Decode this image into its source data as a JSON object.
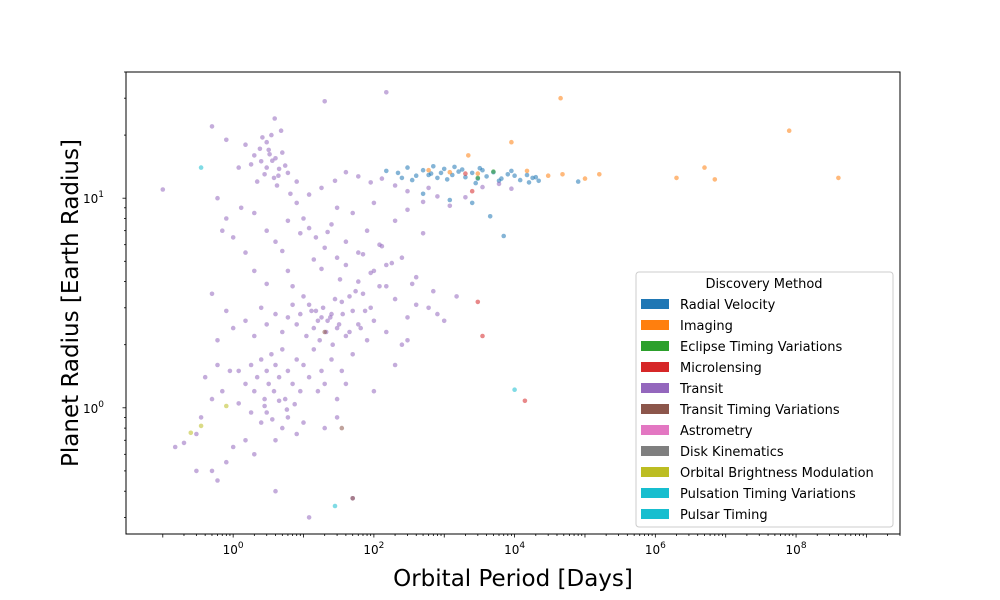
{
  "chart_data": {
    "type": "scatter",
    "title": "",
    "xlabel": "Orbital Period [Days]",
    "ylabel": "Planet Radius [Earth Radius]",
    "x_scale": "log",
    "y_scale": "log",
    "xlim": [
      0.03,
      3000000000
    ],
    "ylim": [
      0.25,
      40
    ],
    "grid": false,
    "legend": {
      "title": "Discovery Method",
      "placement": "lower-right"
    },
    "x_ticks": [
      {
        "value": 1,
        "base": "10",
        "exp": "0"
      },
      {
        "value": 100,
        "base": "10",
        "exp": "2"
      },
      {
        "value": 10000,
        "base": "10",
        "exp": "4"
      },
      {
        "value": 1000000,
        "base": "10",
        "exp": "6"
      },
      {
        "value": 100000000,
        "base": "10",
        "exp": "8"
      }
    ],
    "y_ticks": [
      {
        "value": 1,
        "base": "10",
        "exp": "0"
      },
      {
        "value": 10,
        "base": "10",
        "exp": "1"
      }
    ],
    "series": [
      {
        "name": "Radial Velocity",
        "color": "#1f77b4",
        "points": [
          [
            150,
            13.5
          ],
          [
            220,
            13.2
          ],
          [
            300,
            14
          ],
          [
            400,
            12.8
          ],
          [
            500,
            13.6
          ],
          [
            650,
            13.1
          ],
          [
            800,
            12.5
          ],
          [
            1000,
            13.8
          ],
          [
            1300,
            12.9
          ],
          [
            1600,
            13.4
          ],
          [
            2000,
            12.6
          ],
          [
            2500,
            13.2
          ],
          [
            3200,
            13.9
          ],
          [
            4000,
            12.7
          ],
          [
            5000,
            13.3
          ],
          [
            6500,
            12.4
          ],
          [
            8000,
            13
          ],
          [
            10000,
            12.8
          ],
          [
            12000,
            12.2
          ],
          [
            15000,
            12.9
          ],
          [
            18000,
            12.5
          ],
          [
            22000,
            12.1
          ],
          [
            350,
            12.2
          ],
          [
            700,
            14.2
          ],
          [
            1100,
            12.3
          ],
          [
            2800,
            11.8
          ],
          [
            3500,
            13.6
          ],
          [
            6000,
            12.1
          ],
          [
            9000,
            13.5
          ],
          [
            4500,
            8.2
          ],
          [
            2500,
            9.5
          ],
          [
            7000,
            6.6
          ],
          [
            1200,
            9.8
          ],
          [
            500,
            10.5
          ],
          [
            80000,
            12
          ],
          [
            900,
            13.2
          ],
          [
            1800,
            13.7
          ],
          [
            250,
            12.5
          ],
          [
            600,
            12.9
          ],
          [
            1400,
            14.1
          ],
          [
            3000,
            12.4
          ],
          [
            20000,
            12.6
          ],
          [
            16000,
            11.9
          ]
        ]
      },
      {
        "name": "Imaging",
        "color": "#ff7f0e",
        "points": [
          [
            45000,
            30
          ],
          [
            80000000,
            21
          ],
          [
            9000,
            18.5
          ],
          [
            2200,
            16
          ],
          [
            5000000,
            14
          ],
          [
            15000,
            13.5
          ],
          [
            48000,
            13
          ],
          [
            160000,
            13
          ],
          [
            2000000,
            12.5
          ],
          [
            7000000,
            12.3
          ],
          [
            400000000,
            12.5
          ],
          [
            100000,
            12.4
          ],
          [
            3000,
            13.1
          ],
          [
            30000,
            12.8
          ],
          [
            1200,
            13.3
          ],
          [
            600,
            13.6
          ]
        ]
      },
      {
        "name": "Eclipse Timing Variations",
        "color": "#2ca02c",
        "points": [
          [
            3000,
            12.5
          ],
          [
            5000,
            13.4
          ]
        ]
      },
      {
        "name": "Microlensing",
        "color": "#d62728",
        "points": [
          [
            2500,
            10.8
          ],
          [
            3000,
            3.2
          ],
          [
            3500,
            2.2
          ],
          [
            14000,
            1.08
          ],
          [
            2000,
            13.1
          ]
        ]
      },
      {
        "name": "Transit",
        "color": "#9467bd",
        "points": [
          [
            0.1,
            11
          ],
          [
            0.5,
            22
          ],
          [
            0.8,
            19
          ],
          [
            1.5,
            18
          ],
          [
            2,
            16
          ],
          [
            2.5,
            15
          ],
          [
            3,
            14
          ],
          [
            3.2,
            17
          ],
          [
            3.8,
            12.5
          ],
          [
            4,
            15.5
          ],
          [
            4.5,
            13.8
          ],
          [
            5,
            16.5
          ],
          [
            2.8,
            13
          ],
          [
            3.5,
            20
          ],
          [
            4.2,
            11.5
          ],
          [
            2.2,
            12
          ],
          [
            1.8,
            14.5
          ],
          [
            6,
            13.2
          ],
          [
            8,
            12
          ],
          [
            3,
            18.5
          ],
          [
            3.3,
            16.2
          ],
          [
            2.6,
            19.5
          ],
          [
            4.8,
            21
          ],
          [
            3.9,
            24
          ],
          [
            20,
            29
          ],
          [
            150,
            32
          ],
          [
            1.2,
            14
          ],
          [
            2.4,
            17.2
          ],
          [
            3.6,
            15.1
          ],
          [
            4.4,
            12.8
          ],
          [
            5.5,
            14.3
          ],
          [
            6.5,
            10.5
          ],
          [
            8,
            9.5
          ],
          [
            10,
            8
          ],
          [
            12,
            7.2
          ],
          [
            15,
            6.5
          ],
          [
            20,
            5.8
          ],
          [
            25,
            7.5
          ],
          [
            30,
            9
          ],
          [
            40,
            6.2
          ],
          [
            50,
            8.5
          ],
          [
            60,
            5.5
          ],
          [
            80,
            7
          ],
          [
            100,
            9.5
          ],
          [
            120,
            6
          ],
          [
            150,
            4.8
          ],
          [
            200,
            7.8
          ],
          [
            250,
            5.2
          ],
          [
            300,
            8.8
          ],
          [
            400,
            4.2
          ],
          [
            500,
            6.8
          ],
          [
            700,
            3.6
          ],
          [
            2,
            8.5
          ],
          [
            3,
            7
          ],
          [
            4,
            6.2
          ],
          [
            5,
            5.6
          ],
          [
            6,
            4.5
          ],
          [
            7,
            3.8
          ],
          [
            10,
            3.4
          ],
          [
            12,
            3.1
          ],
          [
            15,
            2.9
          ],
          [
            18,
            2.7
          ],
          [
            22,
            2.6
          ],
          [
            25,
            2.8
          ],
          [
            30,
            2.4
          ],
          [
            35,
            3.2
          ],
          [
            40,
            2.2
          ],
          [
            50,
            2.9
          ],
          [
            60,
            2.5
          ],
          [
            70,
            3.5
          ],
          [
            80,
            2.1
          ],
          [
            90,
            3
          ],
          [
            100,
            2.6
          ],
          [
            120,
            3.8
          ],
          [
            150,
            2.3
          ],
          [
            200,
            3.3
          ],
          [
            250,
            2
          ],
          [
            300,
            2.7
          ],
          [
            400,
            3.1
          ],
          [
            8,
            2.5
          ],
          [
            9,
            2.8
          ],
          [
            11,
            2.2
          ],
          [
            13,
            2.9
          ],
          [
            14,
            2.4
          ],
          [
            16,
            2.6
          ],
          [
            17,
            2.1
          ],
          [
            19,
            3
          ],
          [
            21,
            2.3
          ],
          [
            24,
            2.7
          ],
          [
            26,
            2
          ],
          [
            28,
            3.3
          ],
          [
            32,
            2.5
          ],
          [
            36,
            2.8
          ],
          [
            45,
            2.3
          ],
          [
            55,
            3.6
          ],
          [
            65,
            2.4
          ],
          [
            75,
            2.9
          ],
          [
            6,
            2.7
          ],
          [
            7,
            3.1
          ],
          [
            5,
            2.3
          ],
          [
            4,
            2.8
          ],
          [
            3,
            2.5
          ],
          [
            2.5,
            3
          ],
          [
            2,
            2.2
          ],
          [
            1.5,
            2.6
          ],
          [
            1,
            2.4
          ],
          [
            0.8,
            2.9
          ],
          [
            0.6,
            2.1
          ],
          [
            0.5,
            3.5
          ],
          [
            1.2,
            1.5
          ],
          [
            1.5,
            1.3
          ],
          [
            1.8,
            1.6
          ],
          [
            2,
            1.2
          ],
          [
            2.2,
            1.4
          ],
          [
            2.5,
            1.7
          ],
          [
            2.8,
            1.1
          ],
          [
            3,
            1.5
          ],
          [
            3.2,
            1.3
          ],
          [
            3.5,
            1.8
          ],
          [
            3.8,
            1.2
          ],
          [
            4,
            1.6
          ],
          [
            4.5,
            1.4
          ],
          [
            5,
            1.9
          ],
          [
            5.5,
            1.1
          ],
          [
            6,
            1.5
          ],
          [
            7,
            1.3
          ],
          [
            8,
            1.7
          ],
          [
            9,
            1.2
          ],
          [
            10,
            1.6
          ],
          [
            12,
            1.4
          ],
          [
            14,
            1.9
          ],
          [
            16,
            1.2
          ],
          [
            18,
            1.5
          ],
          [
            20,
            1.3
          ],
          [
            25,
            1.7
          ],
          [
            30,
            1.1
          ],
          [
            35,
            1.5
          ],
          [
            40,
            1.3
          ],
          [
            50,
            1.8
          ],
          [
            0.9,
            1.5
          ],
          [
            0.7,
            1.2
          ],
          [
            0.6,
            1.6
          ],
          [
            0.5,
            1.1
          ],
          [
            0.4,
            1.4
          ],
          [
            0.35,
            0.9
          ],
          [
            0.3,
            0.75
          ],
          [
            0.5,
            0.5
          ],
          [
            0.6,
            0.45
          ],
          [
            0.8,
            0.55
          ],
          [
            1,
            0.65
          ],
          [
            1.5,
            0.7
          ],
          [
            2,
            0.6
          ],
          [
            2.5,
            0.85
          ],
          [
            3,
            0.95
          ],
          [
            4,
            0.7
          ],
          [
            5,
            0.8
          ],
          [
            6,
            0.9
          ],
          [
            8,
            0.75
          ],
          [
            10,
            0.85
          ],
          [
            1.2,
            1.05
          ],
          [
            1.8,
            0.95
          ],
          [
            2.8,
            1.02
          ],
          [
            3.6,
            0.88
          ],
          [
            4.5,
            1.08
          ],
          [
            5.8,
            0.98
          ],
          [
            7.5,
            1.04
          ],
          [
            4,
            0.4
          ],
          [
            12,
            0.3
          ],
          [
            50,
            0.37
          ],
          [
            0.15,
            0.65
          ],
          [
            0.2,
            0.68
          ],
          [
            0.3,
            0.5
          ],
          [
            20,
            0.8
          ],
          [
            30,
            0.9
          ],
          [
            100,
            1.2
          ],
          [
            200,
            1.6
          ],
          [
            300,
            2.1
          ],
          [
            60,
            4
          ],
          [
            100,
            4.5
          ],
          [
            150,
            3.8
          ],
          [
            40,
            4.8
          ],
          [
            30,
            5.2
          ],
          [
            3,
            3.9
          ],
          [
            2,
            4.5
          ],
          [
            1.5,
            5.5
          ],
          [
            1,
            6.5
          ],
          [
            0.8,
            8
          ],
          [
            0.6,
            10
          ],
          [
            0.7,
            7
          ],
          [
            1.3,
            9
          ],
          [
            6,
            7.8
          ],
          [
            9,
            6.8
          ],
          [
            14,
            5.1
          ],
          [
            18,
            4.6
          ],
          [
            22,
            6.9
          ],
          [
            33,
            4.1
          ],
          [
            45,
            3.4
          ],
          [
            70,
            5.4
          ],
          [
            90,
            4.4
          ],
          [
            130,
            5.9
          ],
          [
            180,
            4.9
          ],
          [
            350,
            3.9
          ],
          [
            600,
            3
          ],
          [
            800,
            2.8
          ],
          [
            1000,
            2.6
          ],
          [
            1500,
            3.4
          ],
          [
            500,
            9.6
          ],
          [
            600,
            11.2
          ],
          [
            300,
            10.8
          ],
          [
            200,
            11.5
          ],
          [
            130,
            12.4
          ],
          [
            90,
            11.9
          ],
          [
            60,
            12.7
          ],
          [
            40,
            13.3
          ],
          [
            28,
            12.1
          ],
          [
            18,
            11.2
          ],
          [
            12,
            10.4
          ],
          [
            800,
            10.2
          ],
          [
            1200,
            9.2
          ],
          [
            2000,
            10.1
          ],
          [
            3500,
            11.3
          ],
          [
            6000,
            11.7
          ],
          [
            9000,
            11.1
          ]
        ]
      },
      {
        "name": "Transit Timing Variations",
        "color": "#8c564b",
        "points": [
          [
            20,
            2.3
          ],
          [
            35,
            0.8
          ],
          [
            50,
            0.37
          ]
        ]
      },
      {
        "name": "Astrometry",
        "color": "#e377c2",
        "points": []
      },
      {
        "name": "Disk Kinematics",
        "color": "#7f7f7f",
        "points": []
      },
      {
        "name": "Orbital Brightness Modulation",
        "color": "#bcbd22",
        "points": [
          [
            0.25,
            0.76
          ],
          [
            0.8,
            1.02
          ],
          [
            0.35,
            0.82
          ]
        ]
      },
      {
        "name": "Pulsation Timing Variations",
        "color": "#17becf",
        "points": [
          [
            10000,
            1.22
          ],
          [
            28,
            0.34
          ],
          [
            0.35,
            14
          ]
        ]
      },
      {
        "name": "Pulsar Timing",
        "color": "#17becf",
        "points": []
      }
    ]
  }
}
